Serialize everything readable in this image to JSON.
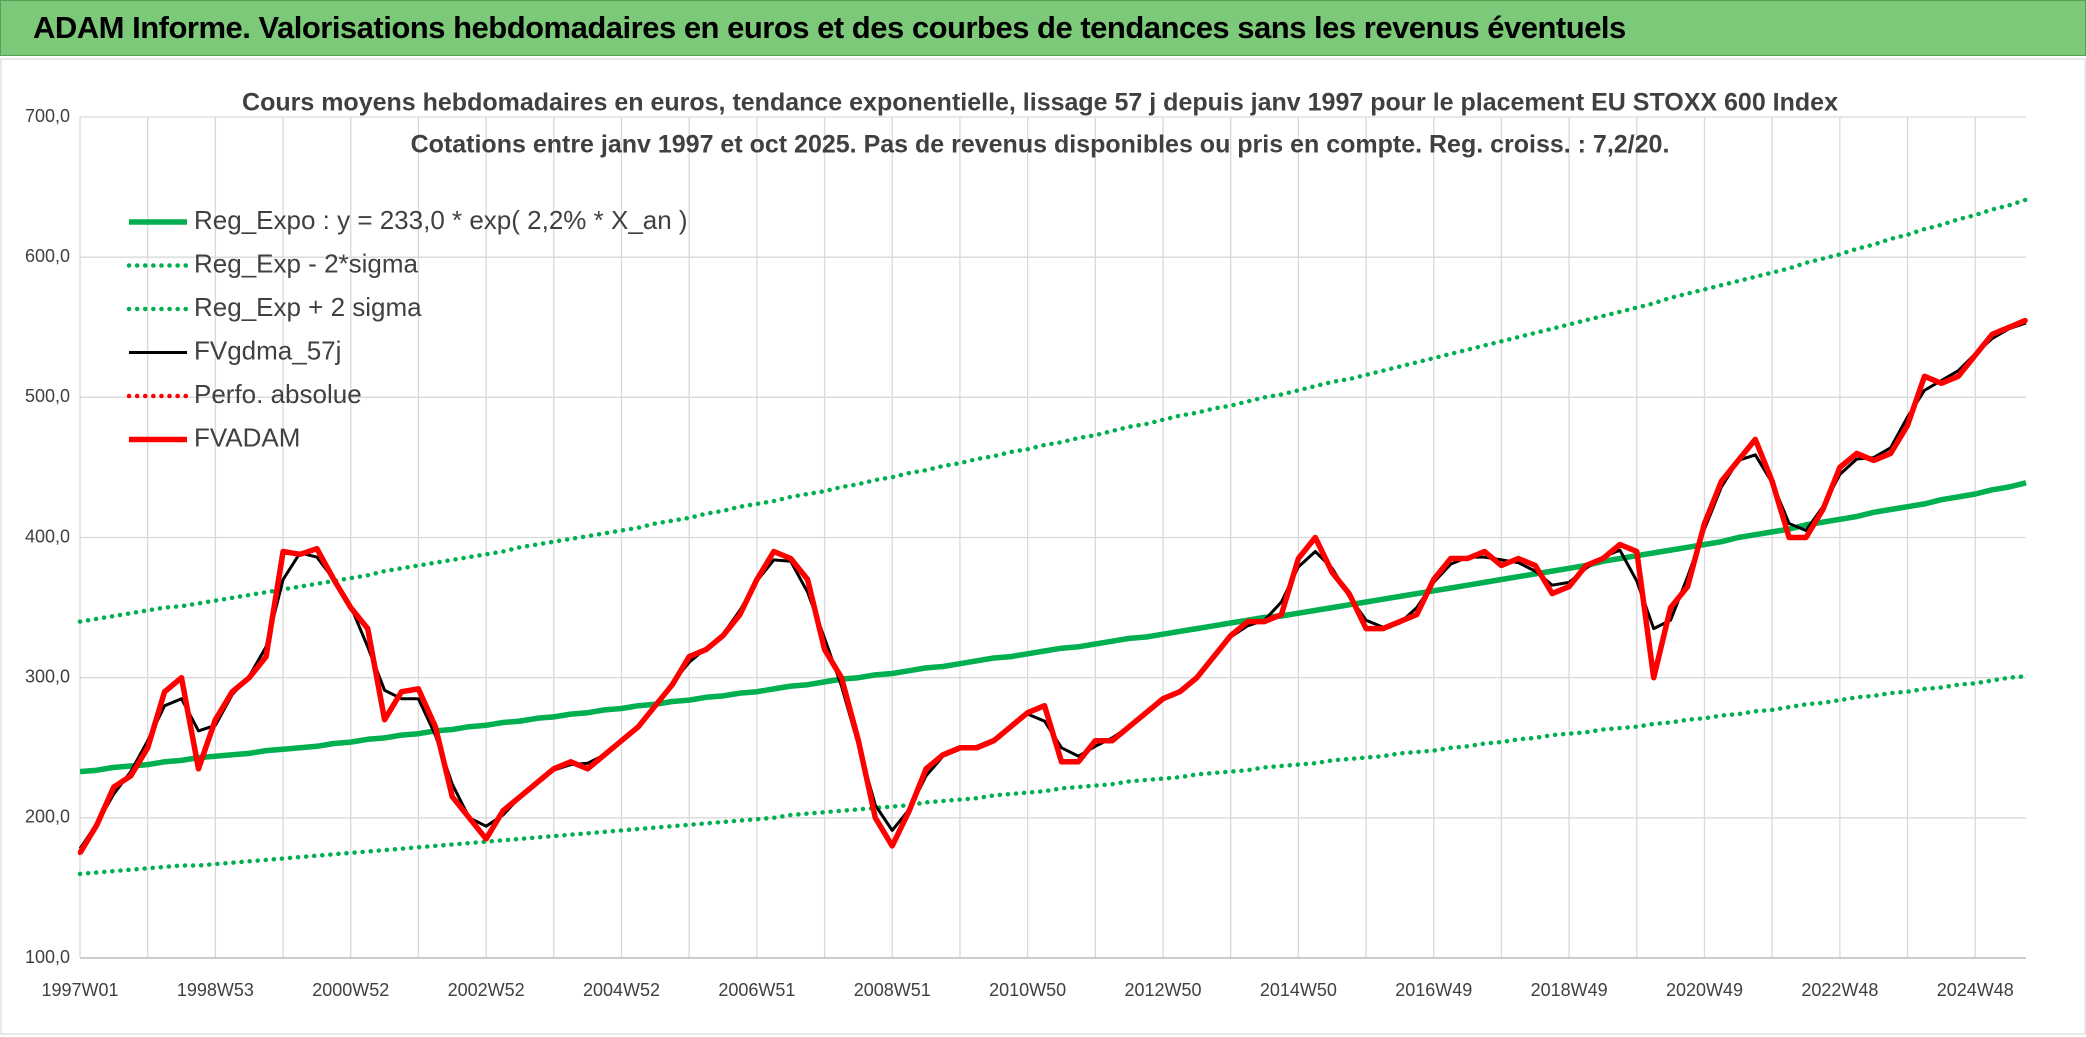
{
  "header": {
    "title": "ADAM Informe. Valorisations hebdomadaires en euros et des courbes de tendances sans les revenus éventuels"
  },
  "chart_data": {
    "type": "line",
    "title": "Cours moyens hebdomadaires en euros, tendance exponentielle, lissage 57 j depuis janv 1997 pour le placement EU STOXX 600 Index",
    "subtitle": "Cotations entre janv 1997 et oct 2025. Pas de revenus disponibles ou pris en compte. Reg. croiss. : 7,2/20.",
    "categories": [
      "1997W01",
      null,
      null,
      null,
      null,
      null,
      null,
      null,
      "1998W53",
      null,
      null,
      null,
      null,
      null,
      null,
      null,
      "2000W52",
      null,
      null,
      null,
      null,
      null,
      null,
      null,
      "2002W52",
      null,
      null,
      null,
      null,
      null,
      null,
      null,
      "2004W52",
      null,
      null,
      null,
      null,
      null,
      null,
      null,
      "2006W51",
      null,
      null,
      null,
      null,
      null,
      null,
      null,
      "2008W51",
      null,
      null,
      null,
      null,
      null,
      null,
      null,
      "2010W50",
      null,
      null,
      null,
      null,
      null,
      null,
      null,
      "2012W50",
      null,
      null,
      null,
      null,
      null,
      null,
      null,
      "2014W50",
      null,
      null,
      null,
      null,
      null,
      null,
      null,
      "2016W49",
      null,
      null,
      null,
      null,
      null,
      null,
      null,
      "2018W49",
      null,
      null,
      null,
      null,
      null,
      null,
      null,
      "2020W49",
      null,
      null,
      null,
      null,
      null,
      null,
      null,
      "2022W48",
      null,
      null,
      null,
      null,
      null,
      null,
      null,
      "2024W48",
      null,
      null,
      null
    ],
    "ylim": [
      100,
      700
    ],
    "yticks": [
      {
        "value": 100,
        "label": "100,0"
      },
      {
        "value": 200,
        "label": "200,0"
      },
      {
        "value": 300,
        "label": "300,0"
      },
      {
        "value": 400,
        "label": "400,0"
      },
      {
        "value": 500,
        "label": "500,0"
      },
      {
        "value": 600,
        "label": "600,0"
      },
      {
        "value": 700,
        "label": "700,0"
      }
    ],
    "grid": true,
    "legend": "upper left",
    "series": [
      {
        "name": "Reg_Expo : y = 233,0 * exp( 2,2% *  X_an )",
        "color": "#00b050",
        "style": "solid",
        "values": [
          233,
          234,
          236,
          237,
          238,
          240,
          241,
          243,
          244,
          245,
          246,
          248,
          249,
          250,
          251,
          253,
          254,
          256,
          257,
          259,
          260,
          262,
          263,
          265,
          266,
          268,
          269,
          271,
          272,
          274,
          275,
          277,
          278,
          280,
          281,
          283,
          284,
          286,
          287,
          289,
          290,
          292,
          294,
          295,
          297,
          299,
          300,
          302,
          303,
          305,
          307,
          308,
          310,
          312,
          314,
          315,
          317,
          319,
          321,
          322,
          324,
          326,
          328,
          329,
          331,
          333,
          335,
          337,
          339,
          341,
          343,
          344,
          346,
          348,
          350,
          352,
          354,
          356,
          358,
          360,
          362,
          364,
          366,
          368,
          370,
          372,
          374,
          376,
          378,
          380,
          383,
          385,
          387,
          389,
          391,
          393,
          395,
          397,
          400,
          402,
          404,
          406,
          409,
          411,
          413,
          415,
          418,
          420,
          422,
          424,
          427,
          429,
          431,
          434,
          436,
          439
        ]
      },
      {
        "name": "Reg_Exp - 2*sigma",
        "color": "#00b050",
        "style": "dotted",
        "values": [
          160,
          161,
          162,
          163,
          164,
          165,
          166,
          166,
          167,
          168,
          169,
          170,
          171,
          172,
          173,
          174,
          175,
          176,
          177,
          178,
          179,
          180,
          181,
          182,
          183,
          184,
          185,
          186,
          187,
          188,
          189,
          190,
          191,
          192,
          193,
          194,
          195,
          196,
          197,
          198,
          199,
          200,
          202,
          203,
          204,
          205,
          206,
          207,
          208,
          209,
          211,
          212,
          213,
          214,
          216,
          217,
          218,
          219,
          221,
          222,
          223,
          224,
          226,
          227,
          228,
          229,
          231,
          232,
          233,
          234,
          236,
          237,
          238,
          239,
          241,
          242,
          243,
          244,
          246,
          247,
          248,
          250,
          251,
          253,
          254,
          256,
          257,
          259,
          260,
          261,
          263,
          264,
          265,
          267,
          268,
          270,
          271,
          273,
          274,
          276,
          277,
          279,
          281,
          282,
          284,
          286,
          287,
          289,
          290,
          292,
          293,
          295,
          296,
          298,
          300,
          301
        ]
      },
      {
        "name": "Reg_Exp + 2 sigma",
        "color": "#00b050",
        "style": "dotted",
        "values": [
          340,
          342,
          344,
          346,
          348,
          350,
          351,
          353,
          355,
          357,
          359,
          361,
          363,
          365,
          367,
          369,
          371,
          373,
          376,
          378,
          380,
          382,
          384,
          386,
          388,
          390,
          393,
          395,
          397,
          399,
          401,
          403,
          405,
          407,
          410,
          412,
          414,
          417,
          419,
          422,
          424,
          426,
          429,
          431,
          433,
          436,
          438,
          441,
          443,
          446,
          448,
          451,
          453,
          456,
          458,
          461,
          463,
          466,
          468,
          471,
          473,
          476,
          479,
          481,
          484,
          487,
          489,
          492,
          494,
          497,
          500,
          502,
          505,
          508,
          511,
          513,
          516,
          519,
          522,
          525,
          528,
          531,
          534,
          537,
          540,
          543,
          546,
          549,
          552,
          555,
          558,
          561,
          564,
          567,
          571,
          574,
          577,
          580,
          583,
          586,
          589,
          592,
          596,
          599,
          602,
          606,
          609,
          613,
          616,
          620,
          623,
          627,
          630,
          634,
          637,
          641
        ]
      },
      {
        "name": "FVgdma_57j",
        "color": "#000000",
        "style": "solid",
        "values": [
          178,
          196,
          217,
          233,
          255,
          280,
          285,
          262,
          266,
          288,
          301,
          322,
          370,
          389,
          386,
          370,
          351,
          322,
          291,
          285,
          285,
          259,
          224,
          200,
          194,
          202,
          215,
          225,
          234,
          238,
          239,
          245,
          255,
          266,
          280,
          296,
          311,
          321,
          331,
          348,
          369,
          384,
          383,
          361,
          328,
          294,
          252,
          209,
          191,
          206,
          230,
          244,
          249,
          251,
          256,
          265,
          274,
          269,
          250,
          244,
          251,
          257,
          265,
          275,
          284,
          291,
          301,
          315,
          329,
          337,
          341,
          354,
          379,
          390,
          378,
          358,
          341,
          336,
          339,
          350,
          368,
          381,
          386,
          386,
          384,
          382,
          376,
          366,
          368,
          378,
          386,
          391,
          369,
          335,
          341,
          372,
          406,
          436,
          455,
          459,
          439,
          410,
          405,
          422,
          445,
          456,
          457,
          464,
          486,
          505,
          512,
          519,
          531,
          542,
          549,
          553
        ]
      },
      {
        "name": "Perfo. absolue",
        "color": "#ff0000",
        "style": "dotted",
        "values": [
          175,
          195,
          222,
          230,
          250,
          290,
          300,
          235,
          270,
          290,
          300,
          315,
          390,
          388,
          392,
          370,
          350,
          335,
          270,
          290,
          292,
          265,
          215,
          200,
          185,
          205,
          215,
          225,
          235,
          240,
          235,
          245,
          255,
          265,
          280,
          295,
          315,
          320,
          330,
          345,
          370,
          390,
          385,
          370,
          320,
          300,
          255,
          200,
          180,
          205,
          235,
          245,
          250,
          250,
          255,
          265,
          275,
          280,
          240,
          240,
          255,
          255,
          265,
          275,
          285,
          290,
          300,
          315,
          330,
          340,
          340,
          345,
          385,
          400,
          375,
          360,
          335,
          335,
          340,
          345,
          370,
          385,
          385,
          390,
          380,
          385,
          380,
          360,
          365,
          380,
          385,
          395,
          390,
          300,
          350,
          365,
          410,
          440,
          455,
          470,
          440,
          400,
          400,
          420,
          450,
          460,
          455,
          460,
          480,
          515,
          510,
          515,
          530,
          545,
          550,
          555
        ]
      },
      {
        "name": "FVADAM",
        "color": "#ff0000",
        "style": "solid",
        "values": [
          175,
          195,
          222,
          230,
          250,
          290,
          300,
          235,
          270,
          290,
          300,
          315,
          390,
          388,
          392,
          370,
          350,
          335,
          270,
          290,
          292,
          265,
          215,
          200,
          185,
          205,
          215,
          225,
          235,
          240,
          235,
          245,
          255,
          265,
          280,
          295,
          315,
          320,
          330,
          345,
          370,
          390,
          385,
          370,
          320,
          300,
          255,
          200,
          180,
          205,
          235,
          245,
          250,
          250,
          255,
          265,
          275,
          280,
          240,
          240,
          255,
          255,
          265,
          275,
          285,
          290,
          300,
          315,
          330,
          340,
          340,
          345,
          385,
          400,
          375,
          360,
          335,
          335,
          340,
          345,
          370,
          385,
          385,
          390,
          380,
          385,
          380,
          360,
          365,
          380,
          385,
          395,
          390,
          300,
          350,
          365,
          410,
          440,
          455,
          470,
          440,
          400,
          400,
          420,
          450,
          460,
          455,
          460,
          480,
          515,
          510,
          515,
          530,
          545,
          550,
          555
        ]
      }
    ]
  }
}
